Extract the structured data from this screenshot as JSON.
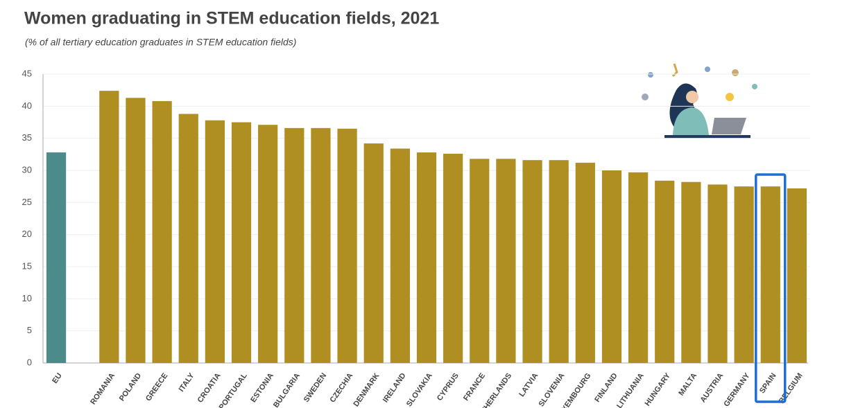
{
  "chart_data": {
    "type": "bar",
    "title": "Women graduating in STEM education fields, 2021",
    "subtitle": "(% of all tertiary education graduates in STEM education fields)",
    "categories": [
      "EU",
      null,
      "ROMANIA",
      "POLAND",
      "GREECE",
      "ITALY",
      "CROATIA",
      "PORTUGAL",
      "ESTONIA",
      "BULGARIA",
      "SWEDEN",
      "CZECHIA",
      "DENMARK",
      "IRELAND",
      "SLOVAKIA",
      "CYPRUS",
      "FRANCE",
      "NETHERLANDS",
      "LATVIA",
      "SLOVENIA",
      "LUXEMBOURG",
      "FINLAND",
      "LITHUANIA",
      "HUNGARY",
      "MALTA",
      "AUSTRIA",
      "GERMANY",
      "SPAIN",
      "BELGIUM"
    ],
    "values": [
      32.8,
      null,
      42.4,
      41.3,
      40.8,
      38.8,
      37.8,
      37.5,
      37.1,
      36.6,
      36.6,
      36.5,
      34.2,
      33.4,
      32.8,
      32.6,
      31.8,
      31.8,
      31.6,
      31.6,
      31.2,
      30.0,
      29.7,
      28.4,
      28.2,
      27.8,
      27.5,
      27.5,
      27.2
    ],
    "colors": [
      "#4b8b8a",
      null,
      "#b08f22",
      "#b08f22",
      "#b08f22",
      "#b08f22",
      "#b08f22",
      "#b08f22",
      "#b08f22",
      "#b08f22",
      "#b08f22",
      "#b08f22",
      "#b08f22",
      "#b08f22",
      "#b08f22",
      "#b08f22",
      "#b08f22",
      "#b08f22",
      "#b08f22",
      "#b08f22",
      "#b08f22",
      "#b08f22",
      "#b08f22",
      "#b08f22",
      "#b08f22",
      "#b08f22",
      "#b08f22",
      "#b08f22",
      "#b08f22"
    ],
    "ylim": [
      0,
      45
    ],
    "yticks": [
      0,
      5,
      10,
      15,
      20,
      25,
      30,
      35,
      40,
      45
    ],
    "grid": true,
    "highlight": {
      "category_index": 27,
      "color": "#1e6fd0"
    }
  }
}
